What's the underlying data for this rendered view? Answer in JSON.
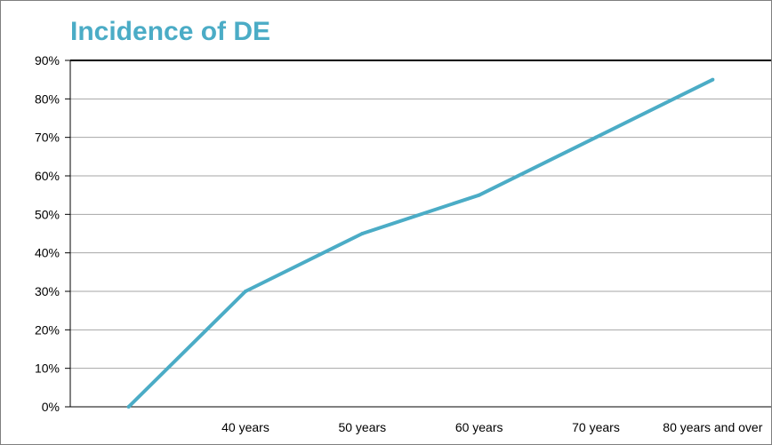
{
  "chart_data": {
    "type": "line",
    "title": "Incidence of DE",
    "xlabel": "",
    "ylabel": "",
    "categories": [
      "",
      "40 years",
      "50 years",
      "60 years",
      "70 years",
      "80 years and over"
    ],
    "series": [
      {
        "values": [
          0,
          30,
          45,
          55,
          70,
          85
        ]
      }
    ],
    "ylim": [
      0,
      90
    ],
    "yticks": [
      "0%",
      "10%",
      "20%",
      "30%",
      "40%",
      "50%",
      "60%",
      "70%",
      "80%",
      "90%"
    ],
    "grid": true,
    "legend": "none",
    "colors": {
      "line": "#4bacc6",
      "title": "#4bacc6",
      "grid": "#a6a6a6",
      "axis": "#000000"
    }
  }
}
